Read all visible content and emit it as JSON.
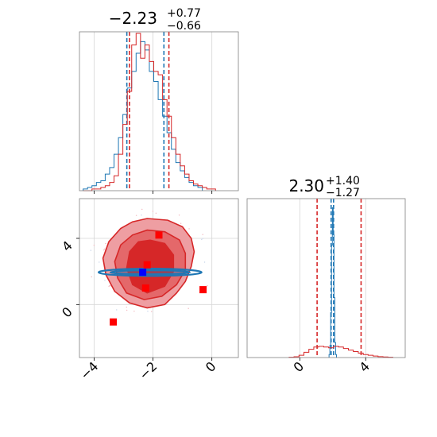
{
  "chart_data": [
    {
      "type": "histogram",
      "panel": "marginal-x",
      "title": {
        "value": "−2.23",
        "plus": "+0.77",
        "minus": "−0.66"
      },
      "xlim": [
        -4.5,
        0.9
      ],
      "grid": true,
      "series": [
        {
          "color": "#1f77b4",
          "quantiles": [
            -2.89,
            -1.63
          ],
          "bins": [
            [
              -4.3,
              0.01
            ],
            [
              -4.15,
              0.02
            ],
            [
              -4.0,
              0.03
            ],
            [
              -3.85,
              0.05
            ],
            [
              -3.7,
              0.06
            ],
            [
              -3.55,
              0.1
            ],
            [
              -3.4,
              0.14
            ],
            [
              -3.25,
              0.22
            ],
            [
              -3.1,
              0.32
            ],
            [
              -2.95,
              0.46
            ],
            [
              -2.8,
              0.62
            ],
            [
              -2.65,
              0.72
            ],
            [
              -2.5,
              0.83
            ],
            [
              -2.35,
              0.9
            ],
            [
              -2.2,
              0.85
            ],
            [
              -2.05,
              0.72
            ],
            [
              -1.9,
              0.66
            ],
            [
              -1.75,
              0.55
            ],
            [
              -1.6,
              0.45
            ],
            [
              -1.45,
              0.35
            ],
            [
              -1.3,
              0.25
            ],
            [
              -1.15,
              0.17
            ],
            [
              -1.0,
              0.12
            ],
            [
              -0.85,
              0.08
            ],
            [
              -0.7,
              0.05
            ],
            [
              -0.55,
              0.03
            ],
            [
              -0.4,
              0.02
            ]
          ]
        },
        {
          "color": "#d62728",
          "quantiles": [
            -2.8,
            -1.46
          ],
          "bins": [
            [
              -4.3,
              0.0
            ],
            [
              -4.15,
              0.0
            ],
            [
              -4.0,
              0.01
            ],
            [
              -3.85,
              0.01
            ],
            [
              -3.7,
              0.02
            ],
            [
              -3.55,
              0.03
            ],
            [
              -3.4,
              0.05
            ],
            [
              -3.25,
              0.09
            ],
            [
              -3.1,
              0.22
            ],
            [
              -2.95,
              0.4
            ],
            [
              -2.8,
              0.6
            ],
            [
              -2.65,
              0.88
            ],
            [
              -2.5,
              0.95
            ],
            [
              -2.35,
              0.8
            ],
            [
              -2.2,
              0.88
            ],
            [
              -2.05,
              0.78
            ],
            [
              -1.9,
              0.72
            ],
            [
              -1.75,
              0.7
            ],
            [
              -1.6,
              0.55
            ],
            [
              -1.45,
              0.45
            ],
            [
              -1.3,
              0.32
            ],
            [
              -1.15,
              0.22
            ],
            [
              -1.0,
              0.15
            ],
            [
              -0.85,
              0.1
            ],
            [
              -0.7,
              0.06
            ],
            [
              -0.55,
              0.04
            ],
            [
              -0.4,
              0.03
            ],
            [
              -0.25,
              0.02
            ],
            [
              -0.1,
              0.01
            ],
            [
              0.05,
              0.01
            ]
          ]
        }
      ]
    },
    {
      "type": "contour",
      "panel": "joint",
      "xlim": [
        -4.5,
        0.9
      ],
      "ylim": [
        -3.2,
        6.4
      ],
      "xticks": [
        "−4",
        "−2",
        "0"
      ],
      "yticks": [
        "0",
        "4"
      ],
      "xtick_values": [
        -4,
        -2,
        0
      ],
      "ytick_values": [
        0,
        4
      ],
      "grid": true,
      "red_contours": {
        "outer": [
          [
            -2.2,
            5.2
          ],
          [
            -1.5,
            5.1
          ],
          [
            -1.0,
            4.7
          ],
          [
            -0.7,
            4.0
          ],
          [
            -0.6,
            3.2
          ],
          [
            -0.7,
            2.3
          ],
          [
            -0.9,
            1.4
          ],
          [
            -1.2,
            0.7
          ],
          [
            -1.6,
            0.0
          ],
          [
            -2.2,
            -0.2
          ],
          [
            -2.8,
            0.1
          ],
          [
            -3.3,
            0.8
          ],
          [
            -3.6,
            1.8
          ],
          [
            -3.7,
            2.8
          ],
          [
            -3.5,
            3.8
          ],
          [
            -3.1,
            4.6
          ],
          [
            -2.7,
            5.0
          ]
        ],
        "middle": [
          [
            -2.2,
            4.5
          ],
          [
            -1.6,
            4.4
          ],
          [
            -1.1,
            3.9
          ],
          [
            -0.9,
            3.1
          ],
          [
            -0.9,
            2.1
          ],
          [
            -1.2,
            1.2
          ],
          [
            -1.7,
            0.5
          ],
          [
            -2.3,
            0.3
          ],
          [
            -2.9,
            0.7
          ],
          [
            -3.2,
            1.6
          ],
          [
            -3.3,
            2.6
          ],
          [
            -3.1,
            3.6
          ],
          [
            -2.7,
            4.2
          ]
        ],
        "inner": [
          [
            -2.1,
            3.9
          ],
          [
            -1.6,
            3.7
          ],
          [
            -1.3,
            3.0
          ],
          [
            -1.3,
            2.0
          ],
          [
            -1.6,
            1.1
          ],
          [
            -2.2,
            0.7
          ],
          [
            -2.7,
            1.2
          ],
          [
            -2.9,
            2.2
          ],
          [
            -2.8,
            3.2
          ],
          [
            -2.5,
            3.8
          ]
        ]
      },
      "blue_contours": [
        {
          "cx": -2.1,
          "cy": 1.95,
          "rx": 1.75,
          "ry": 0.22
        },
        {
          "cx": -2.1,
          "cy": 1.95,
          "rx": 1.35,
          "ry": 0.12
        }
      ],
      "red_points": [
        [
          -1.8,
          4.2
        ],
        [
          -2.2,
          2.4
        ],
        [
          -2.25,
          1.0
        ],
        [
          -0.3,
          0.9
        ],
        [
          -3.35,
          -1.05
        ]
      ],
      "blue_point": [
        -2.35,
        1.95
      ]
    },
    {
      "type": "histogram",
      "panel": "marginal-y",
      "title": {
        "value": "2.30",
        "plus": "+1.40",
        "minus": "−1.27"
      },
      "xlim": [
        -3.2,
        6.4
      ],
      "xticks": [
        "0",
        "4"
      ],
      "xtick_values": [
        0,
        4
      ],
      "grid": true,
      "series": [
        {
          "color": "#1f77b4",
          "quantiles": [
            1.9,
            2.05
          ],
          "bins": [
            [
              1.8,
              0.02
            ],
            [
              1.85,
              0.08
            ],
            [
              1.9,
              0.3
            ],
            [
              1.95,
              0.75
            ],
            [
              2.0,
              1.0
            ],
            [
              2.05,
              0.82
            ],
            [
              2.1,
              0.4
            ],
            [
              2.15,
              0.1
            ],
            [
              2.2,
              0.02
            ]
          ]
        },
        {
          "color": "#d62728",
          "quantiles": [
            1.05,
            3.72
          ],
          "bins": [
            [
              -0.5,
              0.002
            ],
            [
              -0.2,
              0.005
            ],
            [
              0.1,
              0.015
            ],
            [
              0.4,
              0.035
            ],
            [
              0.7,
              0.055
            ],
            [
              1.0,
              0.07
            ],
            [
              1.3,
              0.075
            ],
            [
              1.6,
              0.07
            ],
            [
              1.9,
              0.065
            ],
            [
              2.2,
              0.075
            ],
            [
              2.5,
              0.07
            ],
            [
              2.8,
              0.06
            ],
            [
              3.1,
              0.05
            ],
            [
              3.4,
              0.04
            ],
            [
              3.7,
              0.03
            ],
            [
              4.0,
              0.02
            ],
            [
              4.3,
              0.015
            ],
            [
              4.6,
              0.01
            ],
            [
              4.9,
              0.006
            ],
            [
              5.2,
              0.004
            ],
            [
              5.5,
              0.002
            ]
          ]
        }
      ]
    }
  ]
}
